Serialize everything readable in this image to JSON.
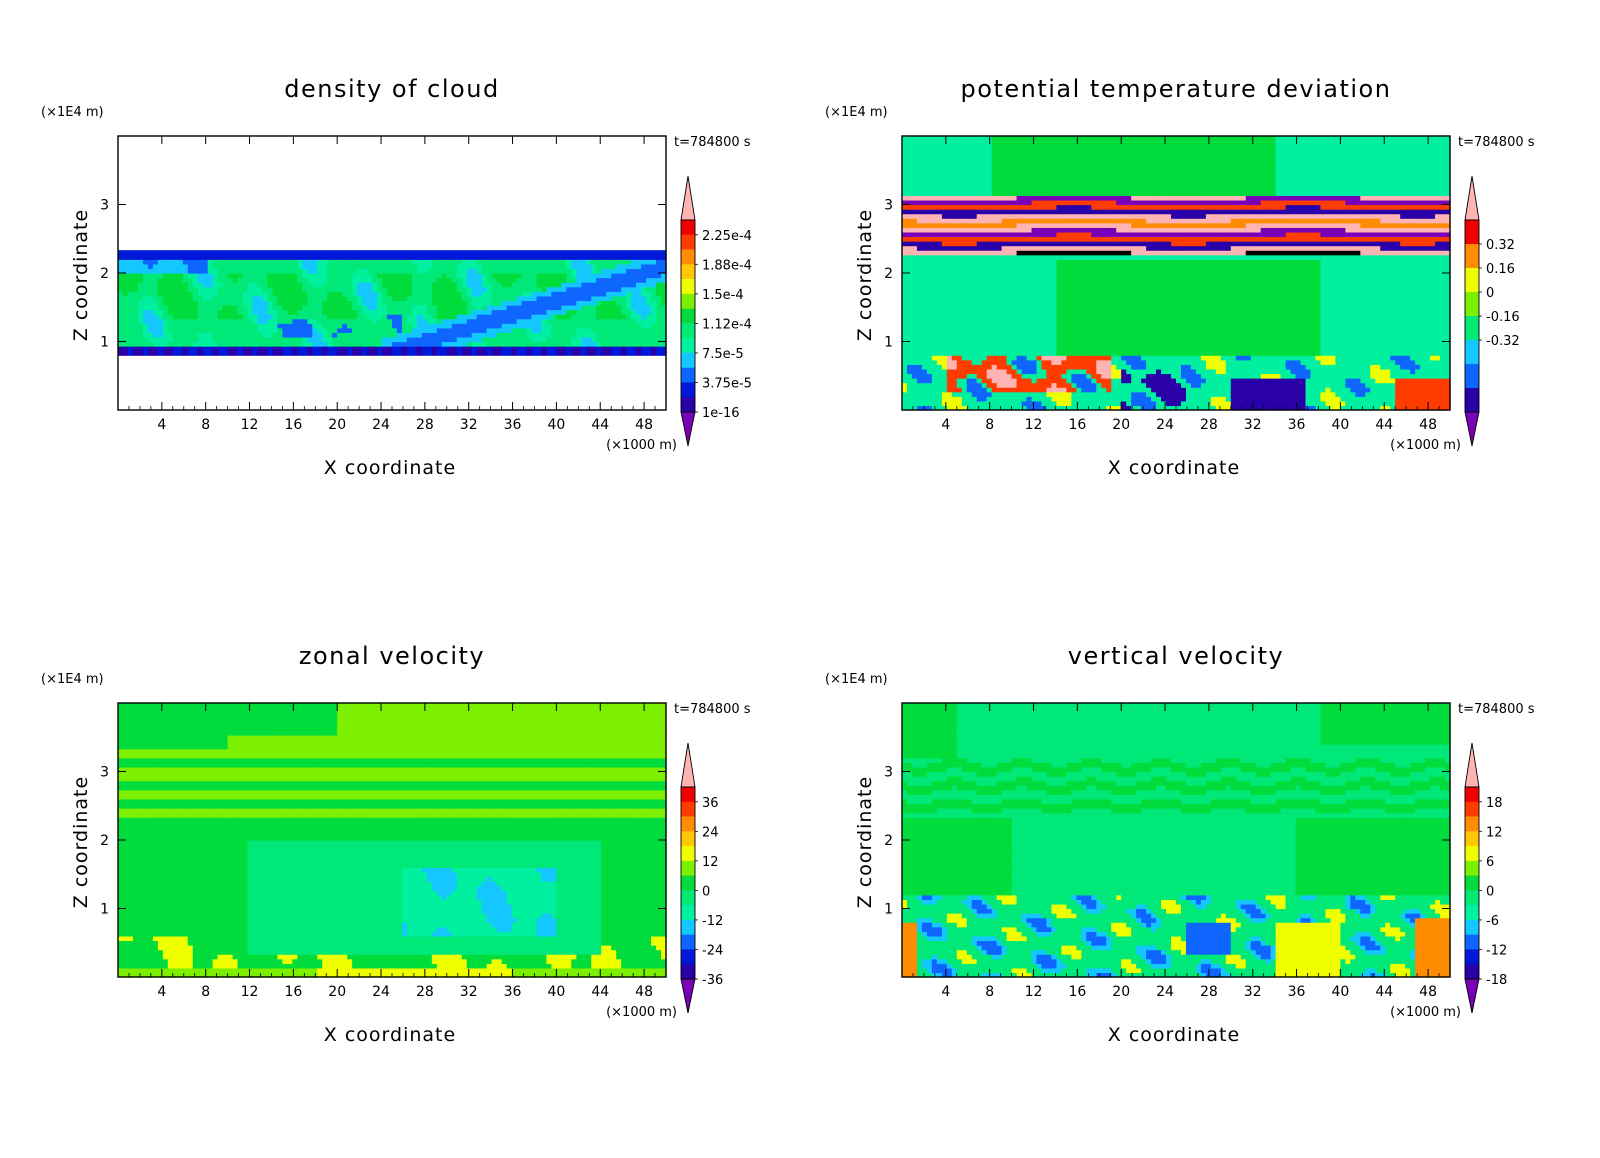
{
  "palette": {
    "blue_green": [
      "#7a00b8",
      "#2a00a8",
      "#0018d8",
      "#0f66ff",
      "#14c8ff",
      "#00f0a0",
      "#00e878",
      "#00dc3c",
      "#7cf000",
      "#f0ff00",
      "#ffc800",
      "#ff8c00",
      "#ff3c00",
      "#f00000",
      "#ffb4b4"
    ],
    "frame": "#000000",
    "background": "#ffffff"
  },
  "chart_data": [
    {
      "type": "heatmap",
      "title": "density of cloud",
      "xlabel": "X coordinate",
      "ylabel": "Z coordinate",
      "x_unit_label": "(×1000 m)",
      "y_unit_label": "(×1E4 m)",
      "time_label": "t=784800 s",
      "xlim": [
        0,
        50
      ],
      "ylim": [
        0,
        4
      ],
      "x_ticks": [
        4,
        8,
        12,
        16,
        20,
        24,
        28,
        32,
        36,
        40,
        44,
        48
      ],
      "x_tick_labels": [
        "4",
        "8",
        "12",
        "16",
        "20",
        "24",
        "28",
        "32",
        "36",
        "40",
        "44",
        "48"
      ],
      "y_ticks": [
        1,
        2,
        3
      ],
      "y_tick_labels": [
        "1",
        "2",
        "3"
      ],
      "colorbar": {
        "labels": [
          "2.25e-4",
          "1.88e-4",
          "1.5e-4",
          "1.12e-4",
          "7.5e-5",
          "3.75e-5",
          "1e-16"
        ],
        "label_positions": [
          1,
          3,
          5,
          7,
          9,
          11,
          13
        ],
        "colors": [
          "#ffb4b4",
          "#f00000",
          "#ff3c00",
          "#ff8c00",
          "#ffc800",
          "#f0ff00",
          "#7cf000",
          "#00dc3c",
          "#00e878",
          "#00f0a0",
          "#14c8ff",
          "#0f66ff",
          "#0018d8",
          "#2a00a8",
          "#7a00b8"
        ]
      },
      "field": "cloud"
    },
    {
      "type": "heatmap",
      "title": "potential temperature deviation",
      "xlabel": "X coordinate",
      "ylabel": "Z coordinate",
      "x_unit_label": "(×1000 m)",
      "y_unit_label": "(×1E4 m)",
      "time_label": "t=784800 s",
      "xlim": [
        0,
        50
      ],
      "ylim": [
        0,
        4
      ],
      "x_ticks": [
        4,
        8,
        12,
        16,
        20,
        24,
        28,
        32,
        36,
        40,
        44,
        48
      ],
      "x_tick_labels": [
        "4",
        "8",
        "12",
        "16",
        "20",
        "24",
        "28",
        "32",
        "36",
        "40",
        "44",
        "48"
      ],
      "y_ticks": [
        1,
        2,
        3
      ],
      "y_tick_labels": [
        "1",
        "2",
        "3"
      ],
      "colorbar": {
        "labels": [
          "0.32",
          "0.16",
          "0",
          "-0.16",
          "-0.32"
        ],
        "label_positions": [
          2,
          4,
          6,
          8,
          10
        ],
        "colors": [
          "#ffb4b4",
          "#f00000",
          "#ff8c00",
          "#f0ff00",
          "#7cf000",
          "#00e878",
          "#14c8ff",
          "#0f66ff",
          "#2a00a8",
          "#7a00b8"
        ]
      },
      "field": "theta"
    },
    {
      "type": "heatmap",
      "title": "zonal velocity",
      "xlabel": "X coordinate",
      "ylabel": "Z coordinate",
      "x_unit_label": "(×1000 m)",
      "y_unit_label": "(×1E4 m)",
      "time_label": "t=784800 s",
      "xlim": [
        0,
        50
      ],
      "ylim": [
        0,
        4
      ],
      "x_ticks": [
        4,
        8,
        12,
        16,
        20,
        24,
        28,
        32,
        36,
        40,
        44,
        48
      ],
      "x_tick_labels": [
        "4",
        "8",
        "12",
        "16",
        "20",
        "24",
        "28",
        "32",
        "36",
        "40",
        "44",
        "48"
      ],
      "y_ticks": [
        1,
        2,
        3
      ],
      "y_tick_labels": [
        "1",
        "2",
        "3"
      ],
      "colorbar": {
        "labels": [
          "36",
          "24",
          "12",
          "0",
          "-12",
          "-24",
          "-36"
        ],
        "label_positions": [
          1,
          3,
          5,
          7,
          9,
          11,
          13
        ],
        "colors": [
          "#ffb4b4",
          "#f00000",
          "#ff3c00",
          "#ff8c00",
          "#ffc800",
          "#f0ff00",
          "#7cf000",
          "#00dc3c",
          "#00e878",
          "#00f0a0",
          "#14c8ff",
          "#0f66ff",
          "#0018d8",
          "#2a00a8",
          "#7a00b8"
        ]
      },
      "field": "u"
    },
    {
      "type": "heatmap",
      "title": "vertical velocity",
      "xlabel": "X coordinate",
      "ylabel": "Z coordinate",
      "x_unit_label": "(×1000 m)",
      "y_unit_label": "(×1E4 m)",
      "time_label": "t=784800 s",
      "xlim": [
        0,
        50
      ],
      "ylim": [
        0,
        4
      ],
      "x_ticks": [
        4,
        8,
        12,
        16,
        20,
        24,
        28,
        32,
        36,
        40,
        44,
        48
      ],
      "x_tick_labels": [
        "4",
        "8",
        "12",
        "16",
        "20",
        "24",
        "28",
        "32",
        "36",
        "40",
        "44",
        "48"
      ],
      "y_ticks": [
        1,
        2,
        3
      ],
      "y_tick_labels": [
        "1",
        "2",
        "3"
      ],
      "colorbar": {
        "labels": [
          "18",
          "12",
          "6",
          "0",
          "-6",
          "-12",
          "-18"
        ],
        "label_positions": [
          1,
          3,
          5,
          7,
          9,
          11,
          13
        ],
        "colors": [
          "#ffb4b4",
          "#f00000",
          "#ff3c00",
          "#ff8c00",
          "#ffc800",
          "#f0ff00",
          "#7cf000",
          "#00dc3c",
          "#00e878",
          "#00f0a0",
          "#14c8ff",
          "#0f66ff",
          "#0018d8",
          "#2a00a8",
          "#7a00b8"
        ]
      },
      "field": "w"
    }
  ]
}
